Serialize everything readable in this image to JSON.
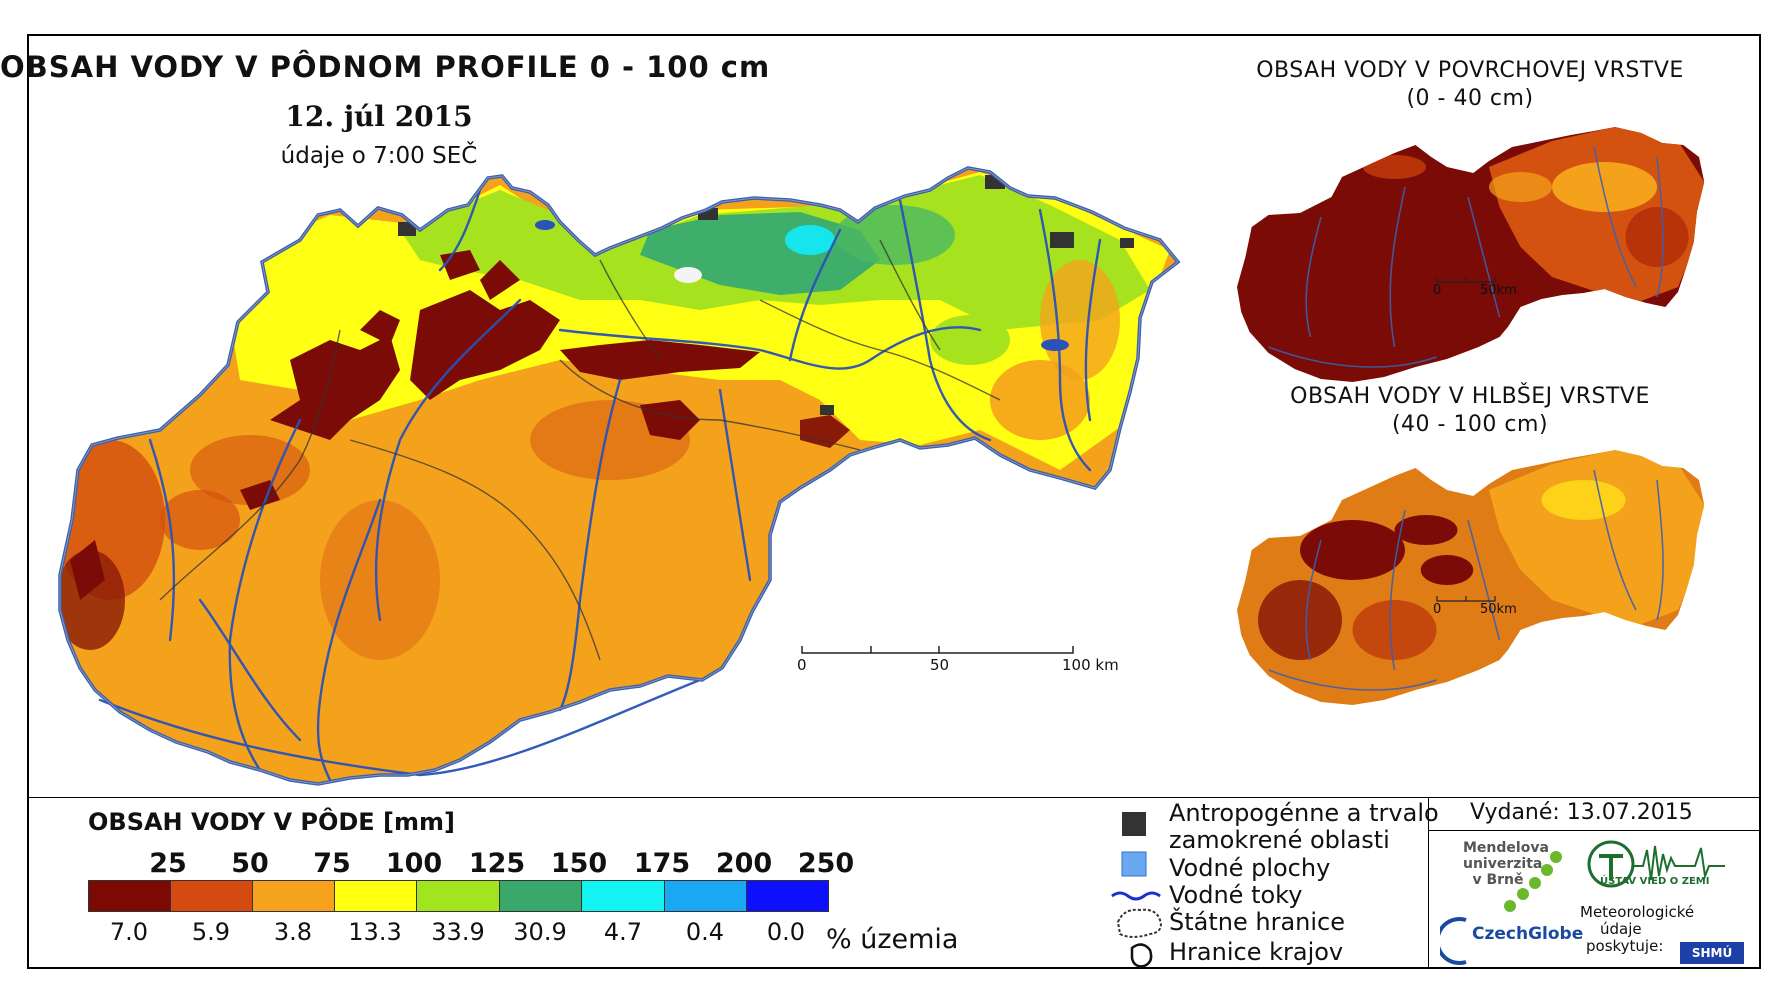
{
  "main_map": {
    "title": "OBSAH VODY V PÔDNOM PROFILE 0 - 100 cm",
    "date": "12. júl 2015",
    "subtitle": "údaje o 7:00 SEČ",
    "scale_labels": [
      "0",
      "50",
      "100 km"
    ]
  },
  "inset_surface": {
    "title_line1": "OBSAH VODY V POVRCHOVEJ VRSTVE",
    "title_line2": "(0 - 40 cm)",
    "scale_labels": [
      "0",
      "50km"
    ]
  },
  "inset_deep": {
    "title_line1": "OBSAH VODY V HLBŠEJ VRSTVE",
    "title_line2": "(40 - 100 cm)",
    "scale_labels": [
      "0",
      "50km"
    ]
  },
  "legend": {
    "title": "OBSAH VODY V PÔDE [mm]",
    "class_breaks": [
      "25",
      "50",
      "75",
      "100",
      "125",
      "150",
      "175",
      "200",
      "250"
    ],
    "classes": [
      {
        "color": "#7b0a05",
        "percent": "7.0"
      },
      {
        "color": "#d44a0f",
        "percent": "5.9"
      },
      {
        "color": "#f7a21c",
        "percent": "3.8"
      },
      {
        "color": "#ffff10",
        "percent": "13.3"
      },
      {
        "color": "#a2e51f",
        "percent": "33.9"
      },
      {
        "color": "#3aa86a",
        "percent": "30.9"
      },
      {
        "color": "#14f2f2",
        "percent": "4.7"
      },
      {
        "color": "#1aa8f2",
        "percent": "0.4"
      },
      {
        "color": "#0f0fff",
        "percent": "0.0"
      }
    ],
    "percent_unit": "% územia"
  },
  "symbols": {
    "anthropogenic_line1": "Antropogénne a trvalo",
    "anthropogenic_line2": "zamokrené oblasti",
    "water_bodies": "Vodné plochy",
    "rivers": "Vodné toky",
    "state_border": "Štátne hranice",
    "region_border": "Hranice krajov"
  },
  "issued": "Vydané: 13.07.2015",
  "organizations": {
    "mendel_line1": "Mendelova",
    "mendel_line2": "univerzita",
    "mendel_line3": "v Brně",
    "czechglobe": "CzechGlobe",
    "uvz": "ÚSTAV VIED O ZEMI",
    "met_line1": "Meteorologické",
    "met_line2": "údaje",
    "met_line3": "poskytuje:",
    "shmu": "SHMÚ"
  },
  "colors": {
    "river": "#2a52b8",
    "border": "#3a5fae",
    "anthropogenic": "#333333",
    "water_body": "#6aa8f0"
  }
}
